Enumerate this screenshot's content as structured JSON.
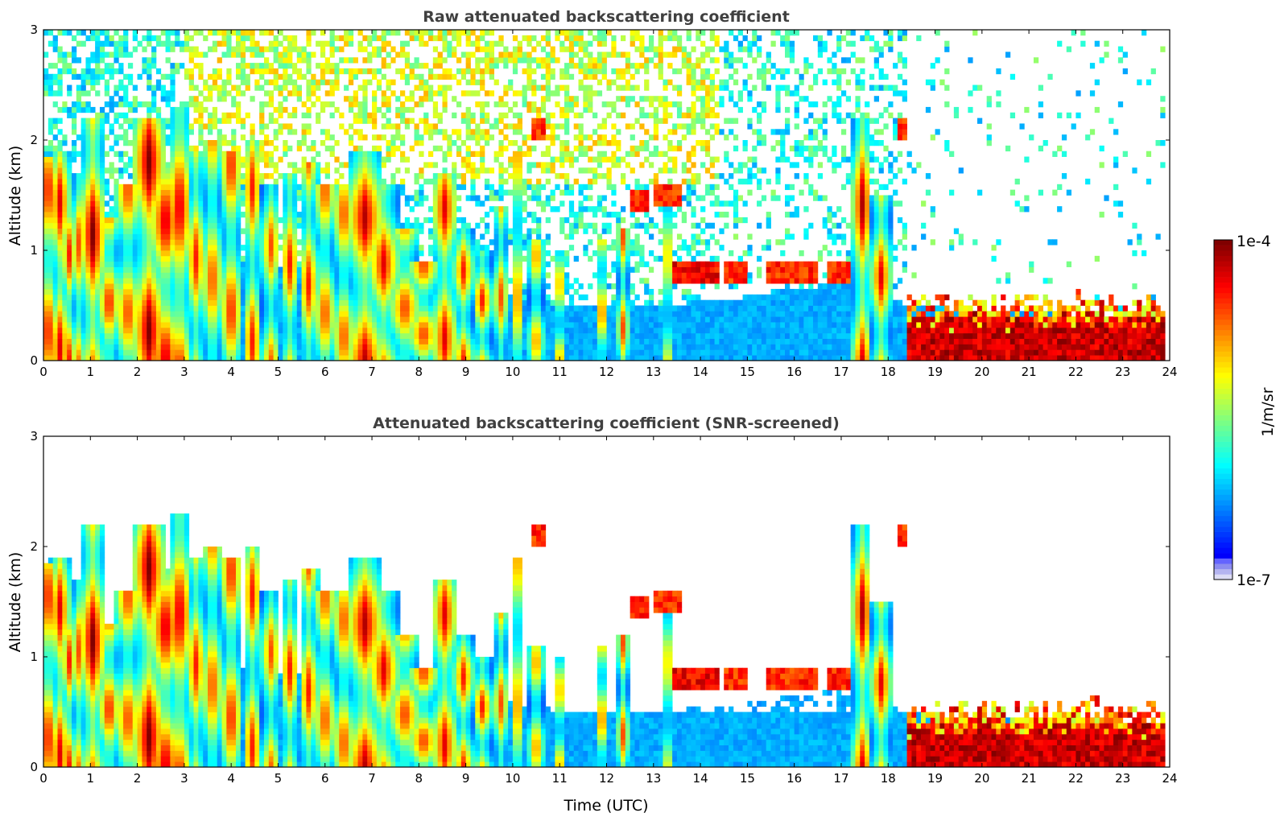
{
  "chart_data": [
    {
      "type": "heatmap",
      "title": "Raw attenuated backscattering coefficient",
      "xlabel": "",
      "ylabel": "Altitude (km)",
      "xlim": [
        0,
        24
      ],
      "ylim": [
        0,
        3
      ],
      "x_ticks": [
        "0",
        "1",
        "2",
        "3",
        "4",
        "5",
        "6",
        "7",
        "8",
        "9",
        "10",
        "11",
        "12",
        "13",
        "14",
        "15",
        "16",
        "17",
        "18",
        "19",
        "20",
        "21",
        "22",
        "23",
        "24"
      ],
      "y_ticks": [
        "0",
        "1",
        "2",
        "3"
      ],
      "data_end_hour": 23.85,
      "description_value": "log10 backscatter per time/altitude bin (approximate)",
      "cloud_events": [
        {
          "t": 0.1,
          "top": 1.85,
          "w": 0.15,
          "v": 0.95
        },
        {
          "t": 0.35,
          "top": 1.9,
          "w": 0.2,
          "v": 0.9
        },
        {
          "t": 0.55,
          "top": 1.4,
          "w": 0.15,
          "v": 0.85
        },
        {
          "t": 0.75,
          "top": 1.7,
          "w": 0.15,
          "v": 0.8
        },
        {
          "t": 1.05,
          "top": 2.2,
          "w": 0.25,
          "v": 1.0
        },
        {
          "t": 1.4,
          "top": 1.3,
          "w": 0.2,
          "v": 0.9
        },
        {
          "t": 1.8,
          "top": 1.6,
          "w": 0.25,
          "v": 0.85
        },
        {
          "t": 2.25,
          "top": 2.2,
          "w": 0.3,
          "v": 1.0
        },
        {
          "t": 2.6,
          "top": 1.8,
          "w": 0.3,
          "v": 0.95
        },
        {
          "t": 2.9,
          "top": 2.3,
          "w": 0.25,
          "v": 0.95
        },
        {
          "t": 3.25,
          "top": 1.9,
          "w": 0.2,
          "v": 0.85
        },
        {
          "t": 3.6,
          "top": 2.0,
          "w": 0.2,
          "v": 0.85
        },
        {
          "t": 4.0,
          "top": 1.9,
          "w": 0.2,
          "v": 0.9
        },
        {
          "t": 4.45,
          "top": 2.0,
          "w": 0.2,
          "v": 0.85
        },
        {
          "t": 4.85,
          "top": 1.6,
          "w": 0.2,
          "v": 0.8
        },
        {
          "t": 5.25,
          "top": 1.7,
          "w": 0.2,
          "v": 0.85
        },
        {
          "t": 5.65,
          "top": 1.8,
          "w": 0.2,
          "v": 0.85
        },
        {
          "t": 6.0,
          "top": 1.6,
          "w": 0.2,
          "v": 0.85
        },
        {
          "t": 6.4,
          "top": 1.6,
          "w": 0.2,
          "v": 0.85
        },
        {
          "t": 6.85,
          "top": 1.9,
          "w": 0.35,
          "v": 0.95
        },
        {
          "t": 7.25,
          "top": 1.6,
          "w": 0.3,
          "v": 0.9
        },
        {
          "t": 7.7,
          "top": 1.2,
          "w": 0.3,
          "v": 0.85
        },
        {
          "t": 8.1,
          "top": 0.9,
          "w": 0.3,
          "v": 0.85
        },
        {
          "t": 8.55,
          "top": 1.7,
          "w": 0.25,
          "v": 0.9
        },
        {
          "t": 8.95,
          "top": 1.2,
          "w": 0.2,
          "v": 0.85
        },
        {
          "t": 9.35,
          "top": 1.0,
          "w": 0.2,
          "v": 0.85
        },
        {
          "t": 9.75,
          "top": 1.4,
          "w": 0.15,
          "v": 0.8
        },
        {
          "t": 10.1,
          "top": 1.9,
          "w": 0.12,
          "v": 0.85
        },
        {
          "t": 10.5,
          "top": 1.1,
          "w": 0.15,
          "v": 0.8
        },
        {
          "t": 11.0,
          "top": 1.0,
          "w": 0.12,
          "v": 0.8
        },
        {
          "t": 11.9,
          "top": 1.1,
          "w": 0.12,
          "v": 0.85
        },
        {
          "t": 12.35,
          "top": 1.2,
          "w": 0.12,
          "v": 0.8
        },
        {
          "t": 13.3,
          "top": 1.5,
          "w": 0.1,
          "v": 0.8
        },
        {
          "t": 17.45,
          "top": 2.2,
          "w": 0.2,
          "v": 0.95
        },
        {
          "t": 17.85,
          "top": 1.5,
          "w": 0.2,
          "v": 0.9
        }
      ],
      "boundary_layer_top_km": [
        {
          "t": 0,
          "h": 0.95
        },
        {
          "t": 3,
          "h": 0.9
        },
        {
          "t": 6,
          "h": 0.85
        },
        {
          "t": 9,
          "h": 0.7
        },
        {
          "t": 11,
          "h": 0.5
        },
        {
          "t": 13,
          "h": 0.5
        },
        {
          "t": 14.5,
          "h": 0.55
        },
        {
          "t": 16,
          "h": 0.65
        },
        {
          "t": 17,
          "h": 0.7
        },
        {
          "t": 18.4,
          "h": 0.5
        },
        {
          "t": 20,
          "h": 0.45
        },
        {
          "t": 23.85,
          "h": 0.4
        }
      ],
      "elevated_layers": [
        {
          "t0": 13.4,
          "t1": 14.4,
          "h": 0.8,
          "v": 0.95
        },
        {
          "t0": 14.5,
          "t1": 15.0,
          "h": 0.8,
          "v": 0.9
        },
        {
          "t0": 15.4,
          "t1": 16.5,
          "h": 0.8,
          "v": 0.9
        },
        {
          "t0": 16.7,
          "t1": 17.2,
          "h": 0.8,
          "v": 0.9
        },
        {
          "t0": 12.5,
          "t1": 12.9,
          "h": 1.45,
          "v": 0.9
        },
        {
          "t0": 13.0,
          "t1": 13.6,
          "h": 1.5,
          "v": 0.9
        },
        {
          "t0": 10.4,
          "t1": 10.7,
          "h": 2.1,
          "v": 0.9
        },
        {
          "t0": 18.2,
          "t1": 18.35,
          "h": 2.1,
          "v": 0.9
        }
      ],
      "dense_low_cloud": {
        "t0": 18.4,
        "t1": 23.85,
        "top": 0.55,
        "v": 1.0
      }
    },
    {
      "type": "heatmap",
      "title": "Attenuated backscattering coefficient (SNR-screened)",
      "xlabel": "Time (UTC)",
      "ylabel": "Altitude (km)",
      "xlim": [
        0,
        24
      ],
      "ylim": [
        0,
        3
      ],
      "x_ticks": [
        "0",
        "1",
        "2",
        "3",
        "4",
        "5",
        "6",
        "7",
        "8",
        "9",
        "10",
        "11",
        "12",
        "13",
        "14",
        "15",
        "16",
        "17",
        "18",
        "19",
        "20",
        "21",
        "22",
        "23",
        "24"
      ],
      "y_ticks": [
        "0",
        "1",
        "2",
        "3"
      ],
      "screened": true
    }
  ],
  "colorbar": {
    "label": "1/m/sr",
    "max_label": "1e-4",
    "min_label": "1e-7",
    "colormap": "jet",
    "lowest_bins": [
      "#dcdcf5",
      "#b4b4f0",
      "#8c8cf0",
      "#6464ff"
    ]
  },
  "colors": {
    "background": "#ffffff",
    "title_text": "#404040"
  }
}
